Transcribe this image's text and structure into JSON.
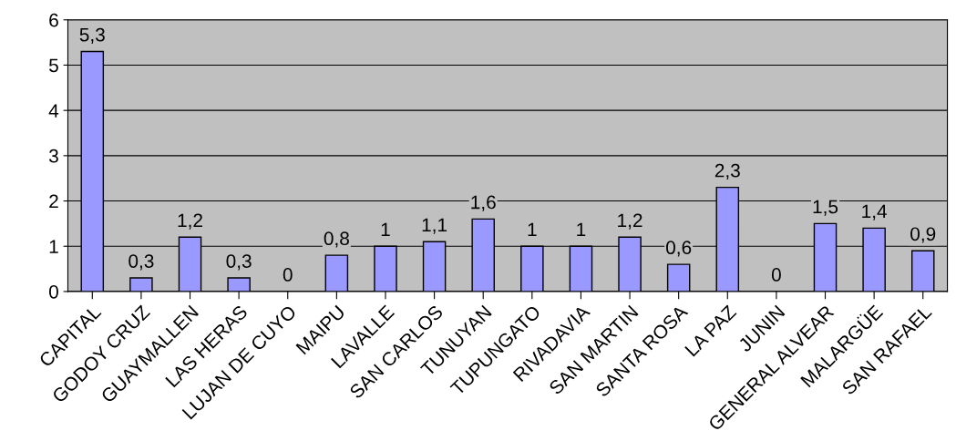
{
  "chart_data": {
    "type": "bar",
    "categories": [
      "CAPITAL",
      "GODOY CRUZ",
      "GUAYMALLEN",
      "LAS HERAS",
      "LUJAN DE CUYO",
      "MAIPU",
      "LAVALLE",
      "SAN CARLOS",
      "TUNUYAN",
      "TUPUNGATO",
      "RIVADAVIA",
      "SAN MARTIN",
      "SANTA ROSA",
      "LA PAZ",
      "JUNIN",
      "GENERAL ALVEAR",
      "MALARGÜE",
      "SAN RAFAEL"
    ],
    "values": [
      5.3,
      0.3,
      1.2,
      0.3,
      0,
      0.8,
      1,
      1.1,
      1.6,
      1,
      1,
      1.2,
      0.6,
      2.3,
      0,
      1.5,
      1.4,
      0.9
    ],
    "value_labels": [
      "5,3",
      "0,3",
      "1,2",
      "0,3",
      "0",
      "0,8",
      "1",
      "1,1",
      "1,6",
      "1",
      "1",
      "1,2",
      "0,6",
      "2,3",
      "0",
      "1,5",
      "1,4",
      "0,9"
    ],
    "color": "#9999ff",
    "ylim": [
      0,
      6
    ],
    "yticks": [
      0,
      1,
      2,
      3,
      4,
      5,
      6
    ],
    "grid": "y",
    "legend": false
  }
}
